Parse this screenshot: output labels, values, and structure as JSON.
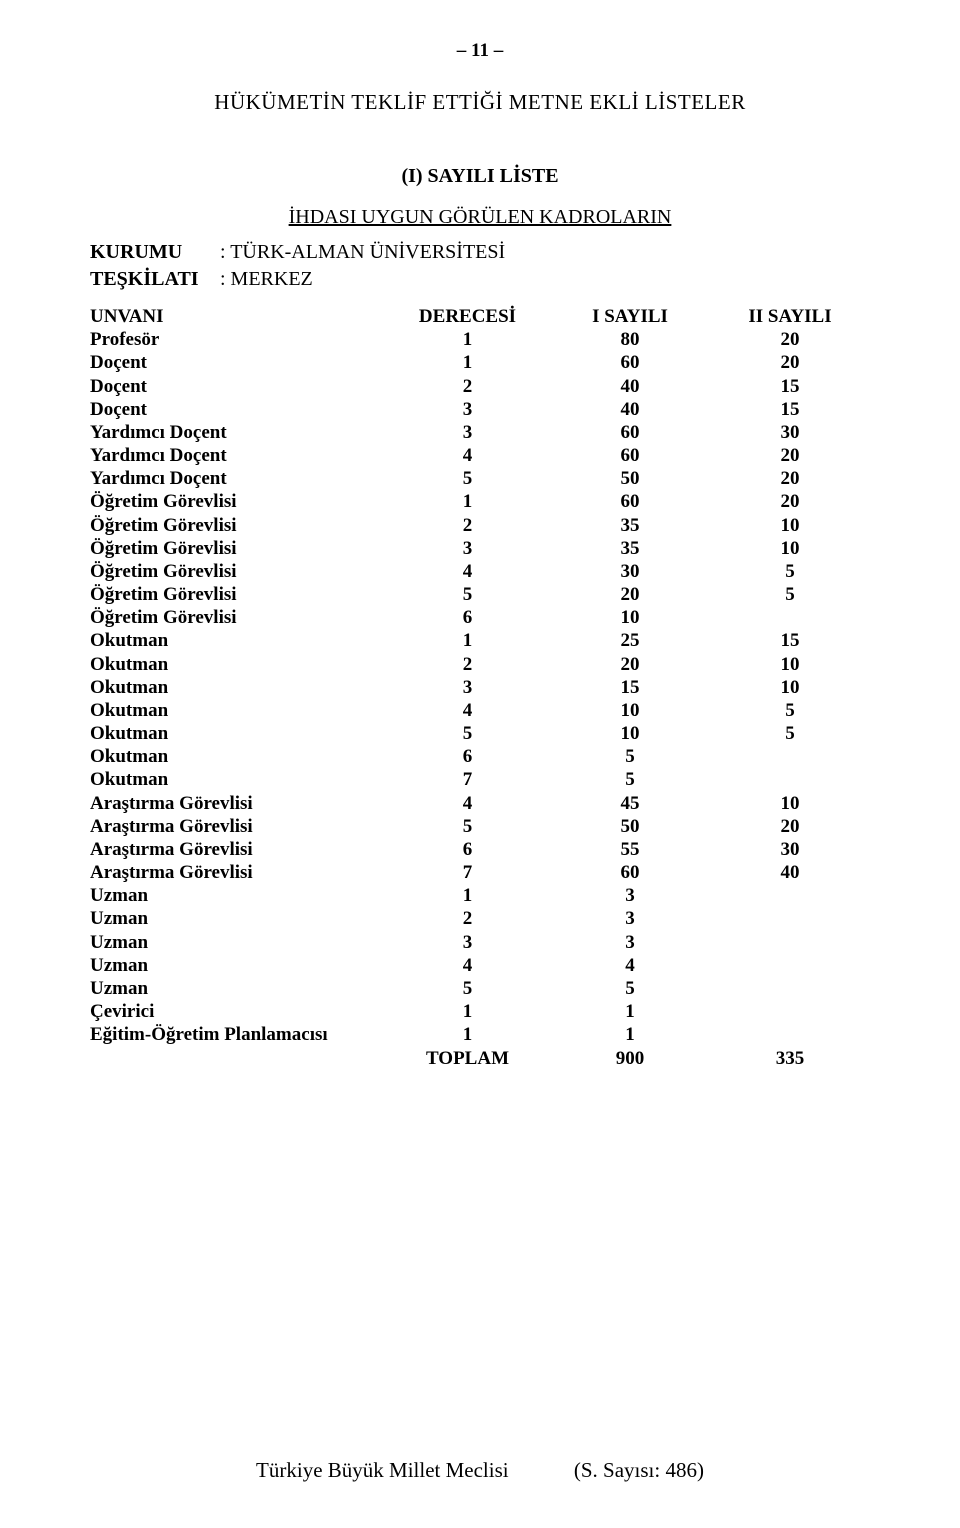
{
  "page_number": "– 11 –",
  "main_title": "HÜKÜMETİN TEKLİF ETTİĞİ METNE EKLİ LİSTELER",
  "sub_title": "(I) SAYILI LİSTE",
  "underline_title": "İHDASI UYGUN GÖRÜLEN KADROLARIN",
  "org": {
    "kurumu_label": "KURUMU",
    "kurumu_value": ": TÜRK-ALMAN ÜNİVERSİTESİ",
    "teskilati_label": "TEŞKİLATI",
    "teskilati_value": ": MERKEZ"
  },
  "headers": {
    "unvan": "UNVANI",
    "derece": "DERECESİ",
    "sayili1": "I SAYILI",
    "sayili2": "II SAYILI"
  },
  "rows": [
    {
      "unvan": "Profesör",
      "derece": "1",
      "s1": "80",
      "s2": "20"
    },
    {
      "unvan": "Doçent",
      "derece": "1",
      "s1": "60",
      "s2": "20"
    },
    {
      "unvan": "Doçent",
      "derece": "2",
      "s1": "40",
      "s2": "15"
    },
    {
      "unvan": "Doçent",
      "derece": "3",
      "s1": "40",
      "s2": "15"
    },
    {
      "unvan": "Yardımcı Doçent",
      "derece": "3",
      "s1": "60",
      "s2": "30"
    },
    {
      "unvan": "Yardımcı Doçent",
      "derece": "4",
      "s1": "60",
      "s2": "20"
    },
    {
      "unvan": "Yardımcı Doçent",
      "derece": "5",
      "s1": "50",
      "s2": "20"
    },
    {
      "unvan": "Öğretim Görevlisi",
      "derece": "1",
      "s1": "60",
      "s2": "20"
    },
    {
      "unvan": "Öğretim Görevlisi",
      "derece": "2",
      "s1": "35",
      "s2": "10"
    },
    {
      "unvan": "Öğretim Görevlisi",
      "derece": "3",
      "s1": "35",
      "s2": "10"
    },
    {
      "unvan": "Öğretim Görevlisi",
      "derece": "4",
      "s1": "30",
      "s2": "5"
    },
    {
      "unvan": "Öğretim Görevlisi",
      "derece": "5",
      "s1": "20",
      "s2": "5"
    },
    {
      "unvan": "Öğretim Görevlisi",
      "derece": "6",
      "s1": "10",
      "s2": ""
    },
    {
      "unvan": "Okutman",
      "derece": "1",
      "s1": "25",
      "s2": "15"
    },
    {
      "unvan": "Okutman",
      "derece": "2",
      "s1": "20",
      "s2": "10"
    },
    {
      "unvan": "Okutman",
      "derece": "3",
      "s1": "15",
      "s2": "10"
    },
    {
      "unvan": "Okutman",
      "derece": "4",
      "s1": "10",
      "s2": "5"
    },
    {
      "unvan": "Okutman",
      "derece": "5",
      "s1": "10",
      "s2": "5"
    },
    {
      "unvan": "Okutman",
      "derece": "6",
      "s1": "5",
      "s2": ""
    },
    {
      "unvan": "Okutman",
      "derece": "7",
      "s1": "5",
      "s2": ""
    },
    {
      "unvan": "Araştırma Görevlisi",
      "derece": "4",
      "s1": "45",
      "s2": "10"
    },
    {
      "unvan": "Araştırma Görevlisi",
      "derece": "5",
      "s1": "50",
      "s2": "20"
    },
    {
      "unvan": "Araştırma Görevlisi",
      "derece": "6",
      "s1": "55",
      "s2": "30"
    },
    {
      "unvan": "Araştırma Görevlisi",
      "derece": "7",
      "s1": "60",
      "s2": "40"
    },
    {
      "unvan": "Uzman",
      "derece": "1",
      "s1": "3",
      "s2": ""
    },
    {
      "unvan": "Uzman",
      "derece": "2",
      "s1": "3",
      "s2": ""
    },
    {
      "unvan": "Uzman",
      "derece": "3",
      "s1": "3",
      "s2": ""
    },
    {
      "unvan": "Uzman",
      "derece": "4",
      "s1": "4",
      "s2": ""
    },
    {
      "unvan": "Uzman",
      "derece": "5",
      "s1": "5",
      "s2": ""
    },
    {
      "unvan": "Çevirici",
      "derece": "1",
      "s1": "1",
      "s2": ""
    },
    {
      "unvan": "Eğitim-Öğretim Planlamacısı",
      "derece": "1",
      "s1": "1",
      "s2": ""
    }
  ],
  "total": {
    "label": "TOPLAM",
    "s1": "900",
    "s2": "335"
  },
  "footer": {
    "left": "Türkiye Büyük Millet Meclisi",
    "right": "(S. Sayısı: 486)"
  }
}
